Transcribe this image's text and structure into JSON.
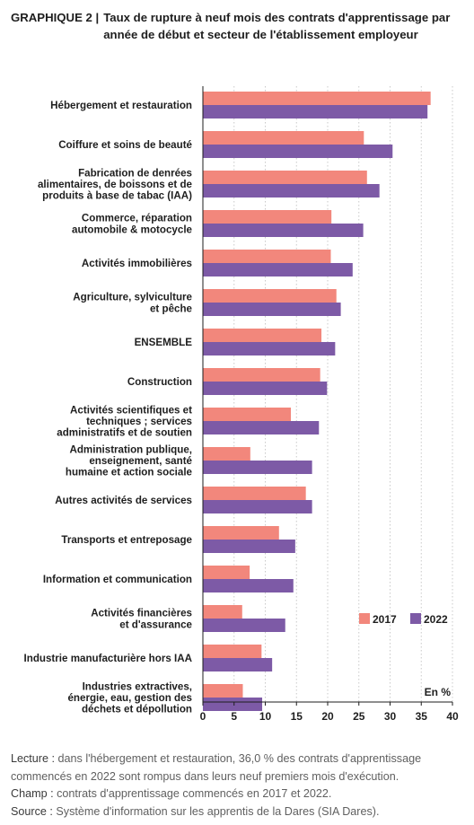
{
  "header": {
    "figure_number": "GRAPHIQUE 2 |",
    "title": "Taux de rupture à neuf mois des contrats d'apprentissage par année de début et secteur de l'établissement employeur"
  },
  "chart_data": {
    "type": "bar",
    "orientation": "horizontal",
    "categories": [
      "Hébergement et restauration",
      "Coiffure et soins de beauté",
      "Fabrication de denrées alimentaires, de boissons et de produits à base de tabac (IAA)",
      "Commerce, réparation automobile & motocycle",
      "Activités immobilières",
      "Agriculture, sylviculture et pêche",
      "ENSEMBLE",
      "Construction",
      "Activités scientifiques et techniques ; services administratifs et de soutien",
      "Administration publique, enseignement, santé humaine et action sociale",
      "Autres activités de services",
      "Transports et entreposage",
      "Information et communication",
      "Activités financières et d'assurance",
      "Industrie manufacturière hors IAA",
      "Industries extractives, énergie, eau, gestion des déchets et dépollution"
    ],
    "category_lines": [
      [
        "Hébergement et restauration"
      ],
      [
        "Coiffure et soins de beauté"
      ],
      [
        "Fabrication de denrées",
        "alimentaires, de boissons et de",
        "produits à base de tabac (IAA)"
      ],
      [
        "Commerce, réparation",
        "automobile & motocycle"
      ],
      [
        "Activités immobilières"
      ],
      [
        "Agriculture, sylviculture",
        "et pêche"
      ],
      [
        "ENSEMBLE"
      ],
      [
        "Construction"
      ],
      [
        "Activités scientifiques et",
        "techniques ; services",
        "administratifs et de soutien"
      ],
      [
        "Administration publique,",
        "enseignement, santé",
        "humaine et action sociale"
      ],
      [
        "Autres activités de services"
      ],
      [
        "Transports et entreposage"
      ],
      [
        "Information et communication"
      ],
      [
        "Activités financières",
        "et d'assurance"
      ],
      [
        "Industrie manufacturière hors IAA"
      ],
      [
        "Industries extractives,",
        "énergie, eau, gestion des",
        "déchets et dépollution"
      ]
    ],
    "series": [
      {
        "name": "2017",
        "color": "#f2877c",
        "values": [
          36.5,
          25.8,
          26.3,
          20.6,
          20.5,
          21.4,
          19.0,
          18.8,
          14.1,
          7.6,
          16.5,
          12.2,
          7.5,
          6.3,
          9.4,
          6.4
        ]
      },
      {
        "name": "2022",
        "color": "#7d5aa6",
        "values": [
          36.0,
          30.4,
          28.3,
          25.7,
          24.0,
          22.1,
          21.2,
          19.9,
          18.6,
          17.5,
          17.5,
          14.8,
          14.5,
          13.2,
          11.1,
          9.5
        ]
      }
    ],
    "xlim": [
      0,
      40
    ],
    "xticks": [
      0,
      5,
      10,
      15,
      20,
      25,
      30,
      35,
      40
    ],
    "unit": "En %",
    "grid": "vertical dotted",
    "legend_position": "bottom-right"
  },
  "notes": {
    "lecture_label": "Lecture :",
    "lecture_text": "dans l'hébergement et restauration, 36,0 % des contrats d'apprentissage commencés en 2022 sont rompus dans leurs neuf premiers mois d'exécution.",
    "champ_label": "Champ :",
    "champ_text": "contrats d'apprentissage commencés en 2017 et 2022.",
    "source_label": "Source :",
    "source_text": "Système d'information sur les apprentis de la Dares (SIA Dares)."
  }
}
